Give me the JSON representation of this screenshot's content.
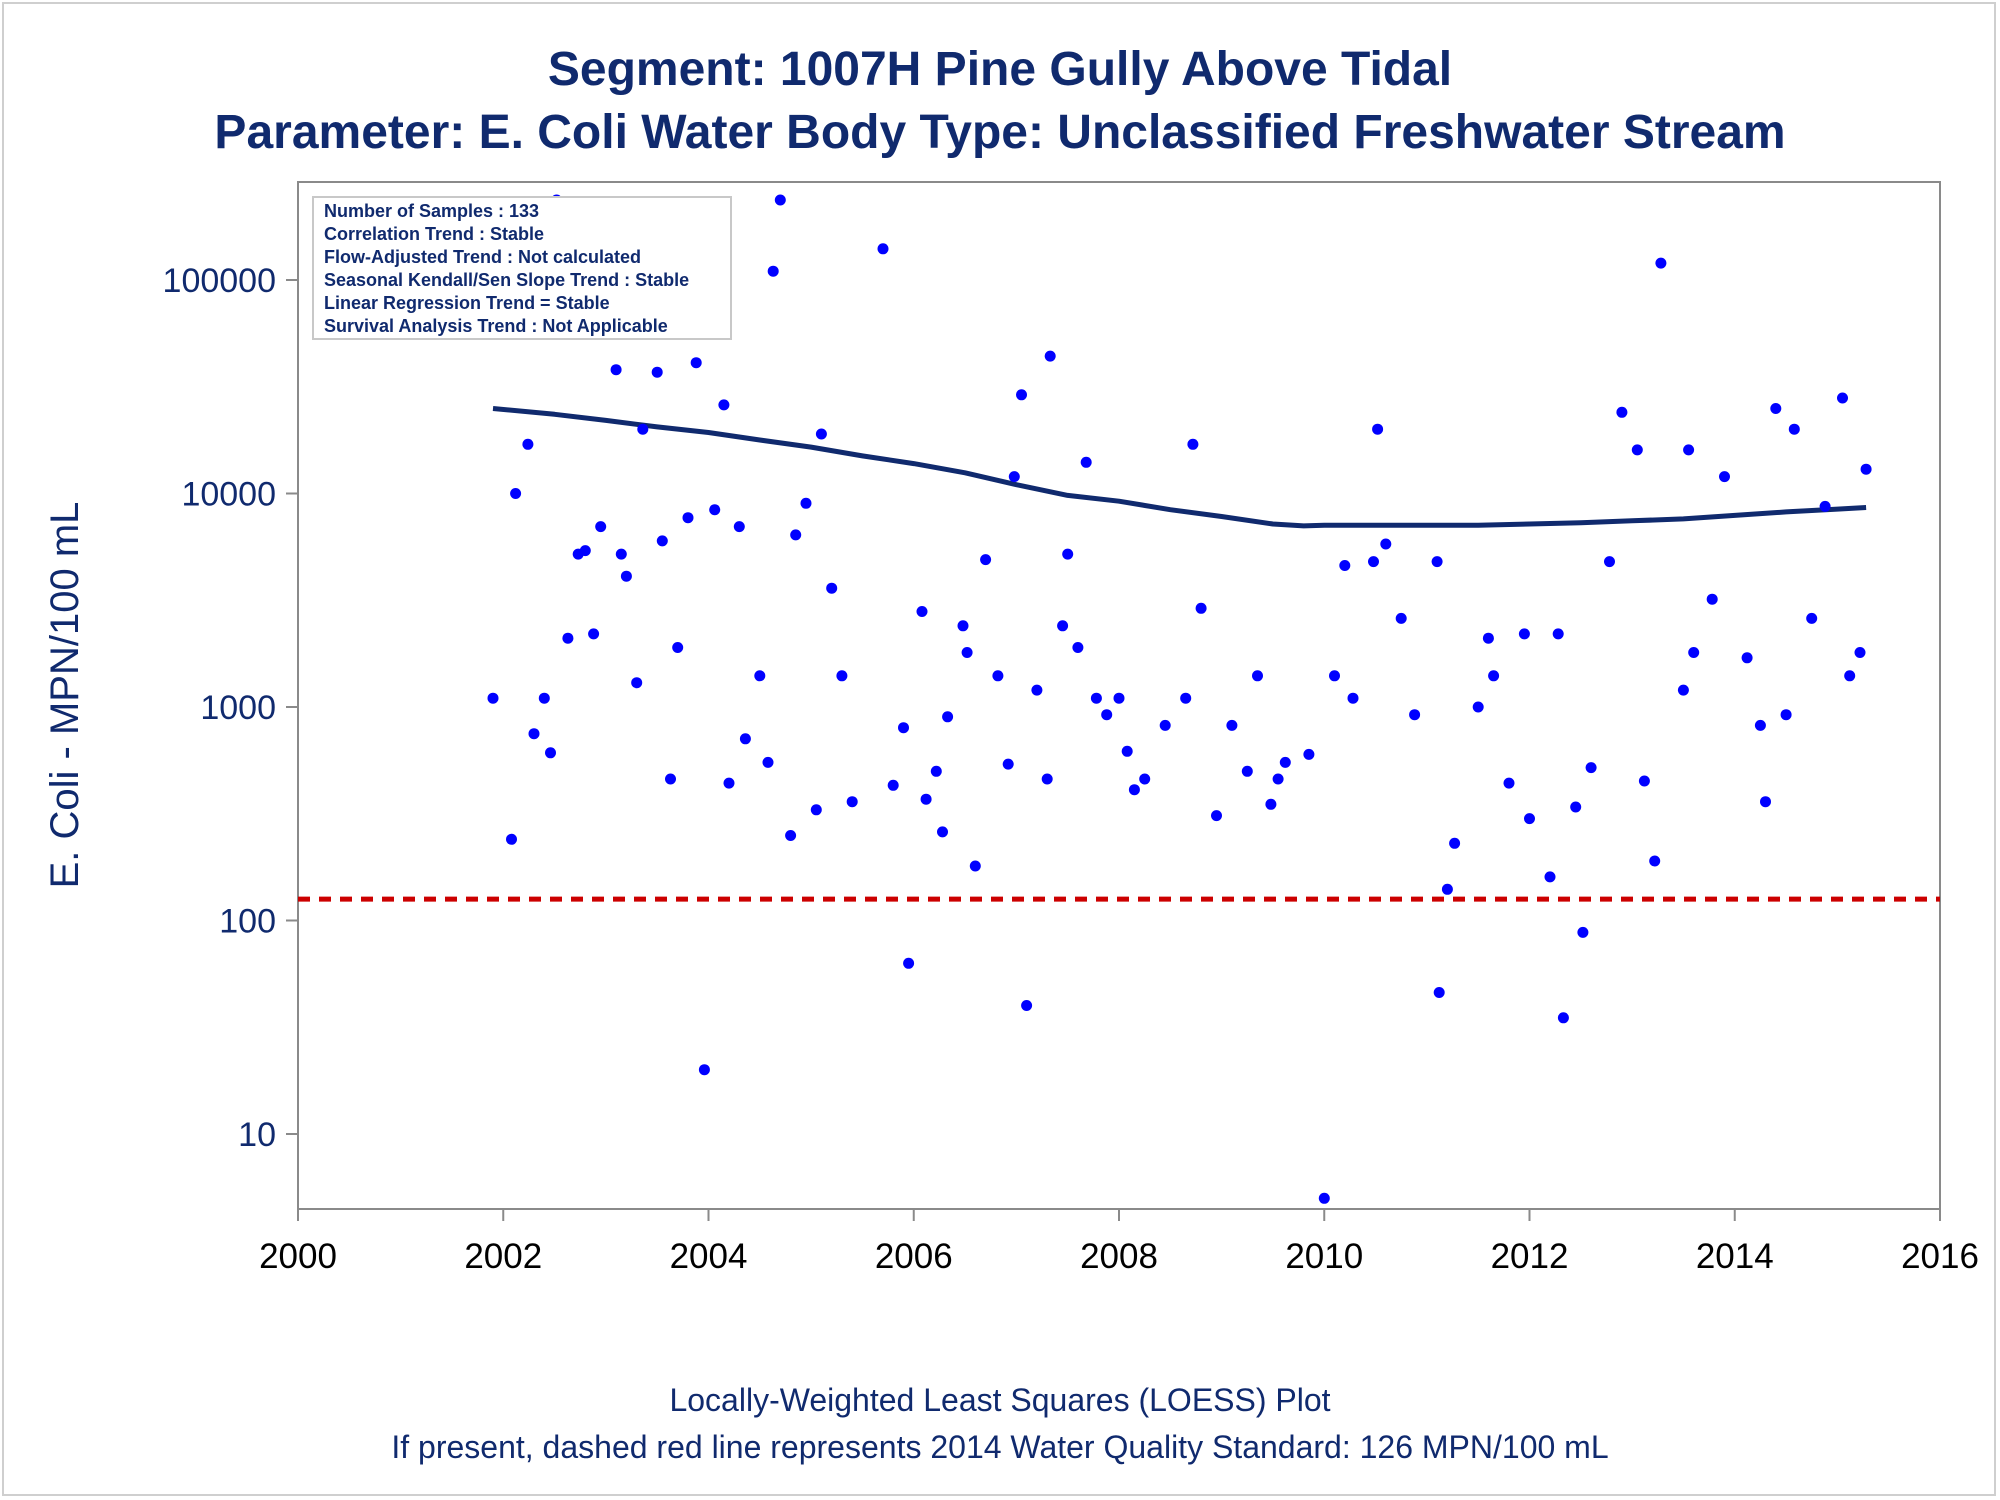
{
  "chart_data": {
    "type": "scatter",
    "title": "Segment: 1007H  Pine Gully Above Tidal",
    "subtitle": "Parameter: E. Coli   Water Body Type: Unclassified Freshwater Stream",
    "xlabel": "",
    "ylabel": "E. Coli - MPN/100 mL",
    "footnotes": [
      "Locally-Weighted Least Squares (LOESS) Plot",
      "If present, dashed red line represents 2014 Water Quality Standard: 126 MPN/100 mL"
    ],
    "xlim": [
      2000,
      2016
    ],
    "ylim": [
      5,
      280000
    ],
    "yscale": "log",
    "xticks": [
      2000,
      2002,
      2004,
      2006,
      2008,
      2010,
      2012,
      2014,
      2016
    ],
    "yticks": [
      10,
      100,
      1000,
      10000,
      100000
    ],
    "ytick_labels": [
      "10",
      "100",
      "1000",
      "10000",
      "100000"
    ],
    "grid": false,
    "stats_box": {
      "placement": "top-left",
      "lines": [
        "Number of Samples : 133",
        "Correlation Trend : Stable",
        "Flow-Adjusted Trend : Not calculated",
        "Seasonal Kendall/Sen Slope Trend : Stable",
        "Linear Regression Trend = Stable",
        "Survival Analysis Trend : Not Applicable"
      ]
    },
    "reference_line": {
      "y": 126,
      "color": "#cc0000",
      "style": "dashed"
    },
    "series": [
      {
        "kind": "points",
        "color": "#0000ff",
        "points": [
          [
            2001.9,
            1100
          ],
          [
            2002.08,
            240
          ],
          [
            2002.12,
            10000
          ],
          [
            2002.24,
            17000
          ],
          [
            2002.3,
            750
          ],
          [
            2002.4,
            1100
          ],
          [
            2002.46,
            610
          ],
          [
            2002.52,
            240000
          ],
          [
            2002.63,
            2100
          ],
          [
            2002.73,
            5200
          ],
          [
            2002.8,
            5400
          ],
          [
            2002.88,
            2200
          ],
          [
            2002.95,
            7000
          ],
          [
            2003.1,
            38000
          ],
          [
            2003.15,
            5200
          ],
          [
            2003.2,
            4100
          ],
          [
            2003.3,
            1300
          ],
          [
            2003.36,
            20000
          ],
          [
            2003.55,
            6000
          ],
          [
            2003.5,
            37000
          ],
          [
            2003.63,
            460
          ],
          [
            2003.7,
            1900
          ],
          [
            2003.8,
            7700
          ],
          [
            2003.88,
            41000
          ],
          [
            2003.96,
            20
          ],
          [
            2004.06,
            8400
          ],
          [
            2004.15,
            26000
          ],
          [
            2004.2,
            440
          ],
          [
            2004.3,
            7000
          ],
          [
            2004.36,
            710
          ],
          [
            2004.5,
            1400
          ],
          [
            2004.58,
            550
          ],
          [
            2004.63,
            110000
          ],
          [
            2004.7,
            240000
          ],
          [
            2004.8,
            250
          ],
          [
            2004.85,
            6400
          ],
          [
            2004.95,
            9000
          ],
          [
            2005.05,
            330
          ],
          [
            2005.1,
            19000
          ],
          [
            2005.2,
            3600
          ],
          [
            2005.3,
            1400
          ],
          [
            2005.4,
            360
          ],
          [
            2005.7,
            140000
          ],
          [
            2005.8,
            430
          ],
          [
            2005.95,
            63
          ],
          [
            2005.9,
            800
          ],
          [
            2006.08,
            2800
          ],
          [
            2006.12,
            370
          ],
          [
            2006.22,
            500
          ],
          [
            2006.28,
            260
          ],
          [
            2006.33,
            900
          ],
          [
            2006.48,
            2400
          ],
          [
            2006.52,
            1800
          ],
          [
            2006.6,
            180
          ],
          [
            2006.7,
            4900
          ],
          [
            2006.82,
            1400
          ],
          [
            2006.92,
            540
          ],
          [
            2006.98,
            12000
          ],
          [
            2007.05,
            29000
          ],
          [
            2007.1,
            40
          ],
          [
            2007.2,
            1200
          ],
          [
            2007.3,
            460
          ],
          [
            2007.33,
            44000
          ],
          [
            2007.45,
            2400
          ],
          [
            2007.5,
            5200
          ],
          [
            2007.6,
            1900
          ],
          [
            2007.68,
            14000
          ],
          [
            2007.78,
            1100
          ],
          [
            2007.88,
            920
          ],
          [
            2008.0,
            1100
          ],
          [
            2008.08,
            620
          ],
          [
            2008.15,
            410
          ],
          [
            2008.25,
            460
          ],
          [
            2008.45,
            820
          ],
          [
            2008.65,
            1100
          ],
          [
            2008.72,
            17000
          ],
          [
            2008.8,
            2900
          ],
          [
            2008.95,
            310
          ],
          [
            2009.1,
            820
          ],
          [
            2009.25,
            500
          ],
          [
            2009.35,
            1400
          ],
          [
            2009.48,
            350
          ],
          [
            2009.55,
            460
          ],
          [
            2009.62,
            550
          ],
          [
            2009.85,
            600
          ],
          [
            2010.0,
            5
          ],
          [
            2010.1,
            1400
          ],
          [
            2010.2,
            4600
          ],
          [
            2010.28,
            1100
          ],
          [
            2010.48,
            4800
          ],
          [
            2010.52,
            20000
          ],
          [
            2010.6,
            5800
          ],
          [
            2010.75,
            2600
          ],
          [
            2010.88,
            920
          ],
          [
            2011.1,
            4800
          ],
          [
            2011.12,
            46
          ],
          [
            2011.2,
            140
          ],
          [
            2011.27,
            230
          ],
          [
            2011.5,
            1000
          ],
          [
            2011.6,
            2100
          ],
          [
            2011.65,
            1400
          ],
          [
            2011.8,
            440
          ],
          [
            2011.95,
            2200
          ],
          [
            2012.0,
            300
          ],
          [
            2012.2,
            160
          ],
          [
            2012.28,
            2200
          ],
          [
            2012.33,
            35
          ],
          [
            2012.45,
            340
          ],
          [
            2012.52,
            88
          ],
          [
            2012.6,
            520
          ],
          [
            2012.78,
            4800
          ],
          [
            2012.9,
            24000
          ],
          [
            2013.05,
            16000
          ],
          [
            2013.12,
            450
          ],
          [
            2013.22,
            190
          ],
          [
            2013.28,
            120000
          ],
          [
            2013.5,
            1200
          ],
          [
            2013.55,
            16000
          ],
          [
            2013.6,
            1800
          ],
          [
            2013.78,
            3200
          ],
          [
            2013.9,
            12000
          ],
          [
            2014.12,
            1700
          ],
          [
            2014.25,
            820
          ],
          [
            2014.3,
            360
          ],
          [
            2014.4,
            25000
          ],
          [
            2014.5,
            920
          ],
          [
            2014.58,
            20000
          ],
          [
            2014.75,
            2600
          ],
          [
            2014.88,
            8700
          ],
          [
            2015.05,
            28000
          ],
          [
            2015.12,
            1400
          ],
          [
            2015.22,
            1800
          ],
          [
            2015.28,
            13000
          ]
        ]
      },
      {
        "kind": "line",
        "color": "#102a6e",
        "points": [
          [
            2001.9,
            25000
          ],
          [
            2002.5,
            23500
          ],
          [
            2003.0,
            22000
          ],
          [
            2003.5,
            20500
          ],
          [
            2004.0,
            19300
          ],
          [
            2004.5,
            17800
          ],
          [
            2005.0,
            16500
          ],
          [
            2005.5,
            15000
          ],
          [
            2006.0,
            13800
          ],
          [
            2006.5,
            12500
          ],
          [
            2007.0,
            11000
          ],
          [
            2007.5,
            9800
          ],
          [
            2008.0,
            9200
          ],
          [
            2008.5,
            8400
          ],
          [
            2009.0,
            7800
          ],
          [
            2009.5,
            7200
          ],
          [
            2009.8,
            7050
          ],
          [
            2010.0,
            7100
          ],
          [
            2010.5,
            7100
          ],
          [
            2011.0,
            7100
          ],
          [
            2011.5,
            7100
          ],
          [
            2012.0,
            7200
          ],
          [
            2012.5,
            7300
          ],
          [
            2013.0,
            7450
          ],
          [
            2013.5,
            7600
          ],
          [
            2014.0,
            7900
          ],
          [
            2014.5,
            8200
          ],
          [
            2015.0,
            8450
          ],
          [
            2015.28,
            8600
          ]
        ]
      }
    ]
  }
}
